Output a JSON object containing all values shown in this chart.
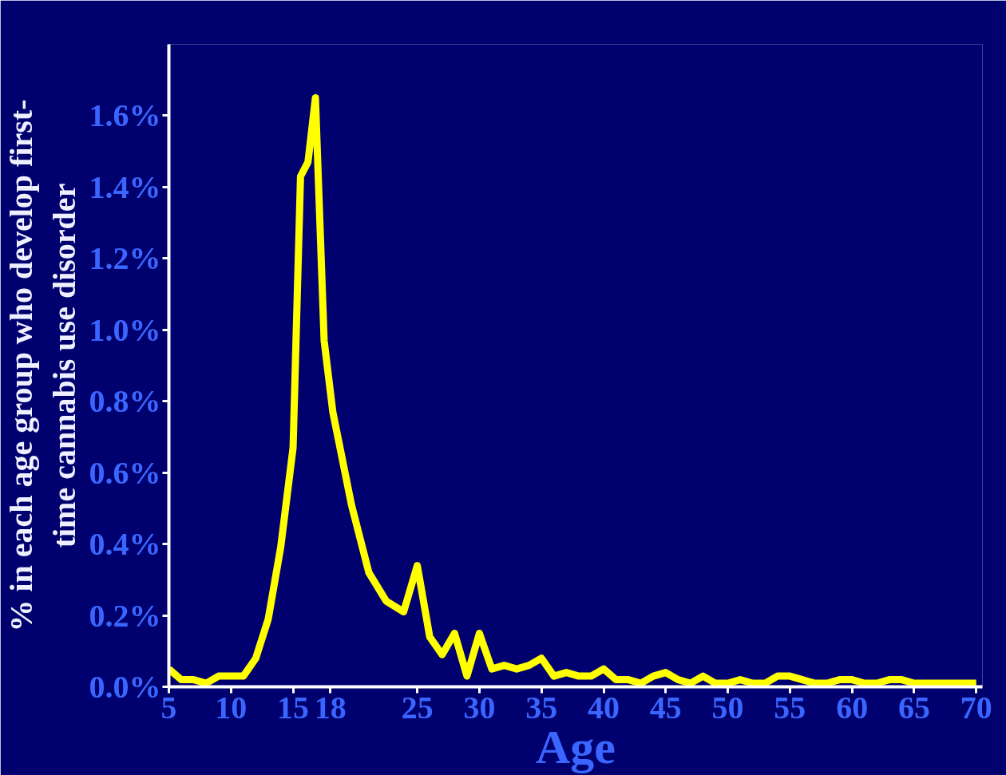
{
  "chart_data": {
    "type": "line",
    "xlabel": "Age",
    "ylabel": "% in each age group who develop first-time cannabis use disorder",
    "x": [
      5,
      6,
      7,
      8,
      9,
      10,
      11,
      12,
      13,
      14,
      15,
      15.6,
      16.2,
      16.8,
      17.5,
      18.2,
      19.7,
      21.1,
      22.5,
      23.9,
      25,
      26,
      27,
      28,
      29,
      30,
      31,
      32,
      33,
      34,
      35,
      36,
      37,
      38,
      39,
      40,
      41,
      42,
      43,
      44,
      45,
      46,
      47,
      48,
      49,
      50,
      51,
      52,
      53,
      54,
      55,
      56,
      57,
      58,
      59,
      60,
      61,
      62,
      63,
      64,
      65,
      66,
      67,
      68,
      69,
      70
    ],
    "series": [
      {
        "color": "#ffff00",
        "values": [
          0.05,
          0.02,
          0.02,
          0.01,
          0.03,
          0.03,
          0.03,
          0.08,
          0.19,
          0.39,
          0.67,
          1.43,
          1.47,
          1.65,
          0.97,
          0.77,
          0.51,
          0.32,
          0.24,
          0.21,
          0.34,
          0.14,
          0.09,
          0.15,
          0.03,
          0.15,
          0.05,
          0.06,
          0.05,
          0.06,
          0.08,
          0.03,
          0.04,
          0.03,
          0.03,
          0.05,
          0.02,
          0.02,
          0.01,
          0.03,
          0.04,
          0.02,
          0.01,
          0.03,
          0.01,
          0.01,
          0.02,
          0.01,
          0.01,
          0.03,
          0.03,
          0.02,
          0.01,
          0.01,
          0.02,
          0.02,
          0.01,
          0.01,
          0.02,
          0.02,
          0.01,
          0.01,
          0.01,
          0.01,
          0.01,
          0.01
        ]
      }
    ],
    "xlim": [
      5,
      70.5
    ],
    "xticks": [
      5,
      10,
      15,
      18,
      25,
      30,
      35,
      40,
      45,
      50,
      55,
      60,
      65,
      70
    ],
    "ylim": [
      0,
      1.8
    ],
    "yticks": [
      {
        "value": 0,
        "label": "0.0%"
      },
      {
        "value": 0.2,
        "label": "0.2%"
      },
      {
        "value": 0.4,
        "label": "0.4%"
      },
      {
        "value": 0.6,
        "label": "0.6%"
      },
      {
        "value": 0.8,
        "label": "0.8%"
      },
      {
        "value": 1.0,
        "label": "1.0%"
      },
      {
        "value": 1.2,
        "label": "1.2%"
      },
      {
        "value": 1.4,
        "label": "1.4%"
      },
      {
        "value": 1.6,
        "label": "1.6%"
      }
    ],
    "grid": false,
    "marker": "none",
    "line_style": "solid"
  }
}
